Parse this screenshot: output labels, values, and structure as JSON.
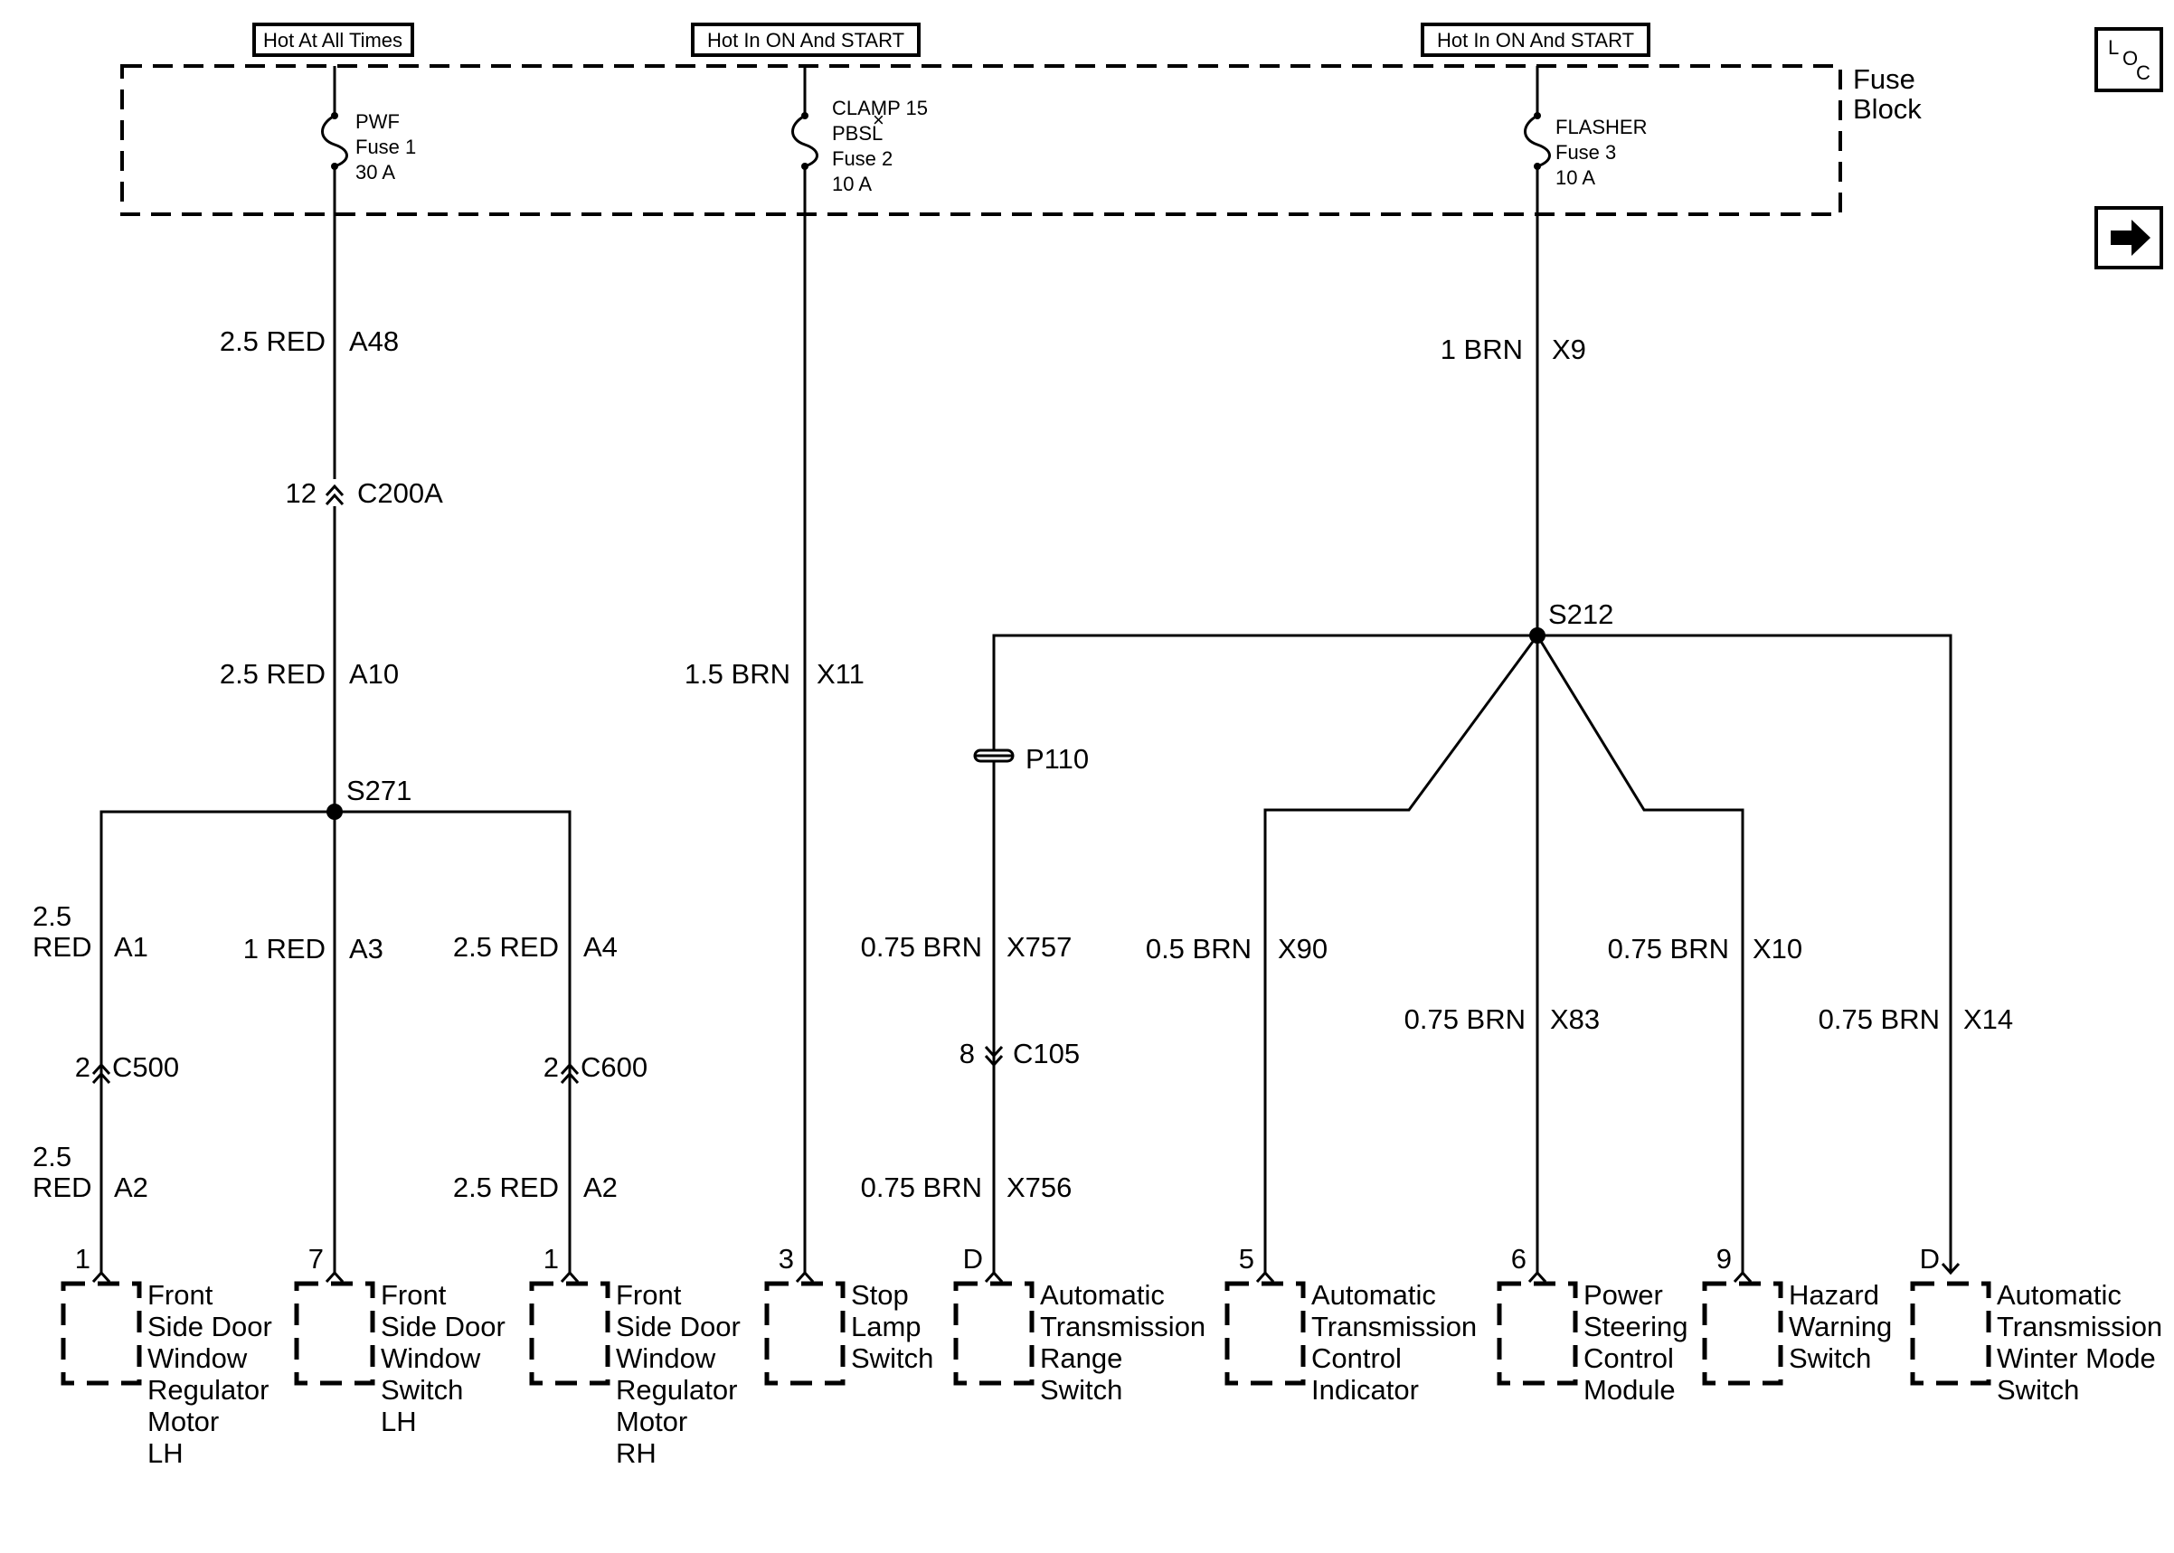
{
  "headers": {
    "hot_at_all_times": "Hot At All Times",
    "hot_in_on_start_1": "Hot In ON And START",
    "hot_in_on_start_2": "Hot In ON And START"
  },
  "fuse_block": {
    "line1": "Fuse",
    "line2": "Block"
  },
  "fuses": {
    "pwf": {
      "name": "PWF",
      "id": "Fuse 1",
      "rating": "30 A"
    },
    "clamp15": {
      "name1": "CLAMP 15",
      "name2": "PBSL",
      "mark": "×",
      "id": "Fuse 2",
      "rating": "10 A"
    },
    "flasher": {
      "name": "FLASHER",
      "id": "Fuse 3",
      "rating": "10 A"
    }
  },
  "icons": {
    "loc": {
      "l": "L",
      "o": "O",
      "c": "C"
    },
    "arrow": "next-page-arrow-icon"
  },
  "wires": {
    "a48": {
      "gauge": "2.5 RED",
      "circuit": "A48"
    },
    "a10": {
      "gauge": "2.5 RED",
      "circuit": "A10"
    },
    "x11": {
      "gauge": "1.5 BRN",
      "circuit": "X11"
    },
    "x9": {
      "gauge": "1 BRN",
      "circuit": "X9"
    },
    "a1": {
      "gauge1": "2.5",
      "gauge2": "RED",
      "circuit": "A1"
    },
    "a3": {
      "gauge": "1 RED",
      "circuit": "A3"
    },
    "a4": {
      "gauge": "2.5 RED",
      "circuit": "A4"
    },
    "a2_left": {
      "gauge1": "2.5",
      "gauge2": "RED",
      "circuit": "A2"
    },
    "a2_right": {
      "gauge": "2.5 RED",
      "circuit": "A2"
    },
    "x757": {
      "gauge": "0.75 BRN",
      "circuit": "X757"
    },
    "x756": {
      "gauge": "0.75 BRN",
      "circuit": "X756"
    },
    "x90": {
      "gauge": "0.5 BRN",
      "circuit": "X90"
    },
    "x83": {
      "gauge": "0.75 BRN",
      "circuit": "X83"
    },
    "x10": {
      "gauge": "0.75 BRN",
      "circuit": "X10"
    },
    "x14": {
      "gauge": "0.75 BRN",
      "circuit": "X14"
    }
  },
  "connectors": {
    "c200a": {
      "pin": "12",
      "name": "C200A"
    },
    "c500": {
      "pin": "2",
      "name": "C500"
    },
    "c600": {
      "pin": "2",
      "name": "C600"
    },
    "c105": {
      "pin": "8",
      "name": "C105"
    },
    "p110": {
      "name": "P110"
    }
  },
  "splices": {
    "s271": "S271",
    "s212": "S212"
  },
  "components": [
    {
      "pin": "1",
      "lines": [
        "Front",
        "Side Door",
        "Window",
        "Regulator",
        "Motor",
        "LH"
      ]
    },
    {
      "pin": "7",
      "lines": [
        "Front",
        "Side Door",
        "Window",
        "Switch",
        "LH"
      ]
    },
    {
      "pin": "1",
      "lines": [
        "Front",
        "Side Door",
        "Window",
        "Regulator",
        "Motor",
        "RH"
      ]
    },
    {
      "pin": "3",
      "lines": [
        "Stop",
        "Lamp",
        "Switch"
      ]
    },
    {
      "pin": "D",
      "lines": [
        "Automatic",
        "Transmission",
        "Range",
        "Switch"
      ]
    },
    {
      "pin": "5",
      "lines": [
        "Automatic",
        "Transmission",
        "Control",
        "Indicator"
      ]
    },
    {
      "pin": "6",
      "lines": [
        "Power",
        "Steering",
        "Control",
        "Module"
      ]
    },
    {
      "pin": "9",
      "lines": [
        "Hazard",
        "Warning",
        "Switch"
      ]
    },
    {
      "pin": "D",
      "lines": [
        "Automatic",
        "Transmission",
        "Winter Mode",
        "Switch"
      ]
    }
  ]
}
